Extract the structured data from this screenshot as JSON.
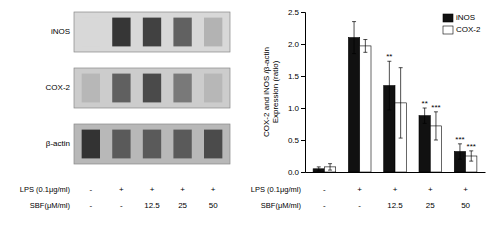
{
  "chart_data": [
    {
      "type": "blot",
      "series": [
        {
          "name": "iNOS",
          "color": "#d8d8d8",
          "values": [
            0.0,
            0.88,
            0.82,
            0.65,
            0.2
          ]
        },
        {
          "name": "COX-2",
          "color": "#cccccc",
          "values": [
            0.12,
            0.62,
            0.75,
            0.48,
            0.12
          ]
        },
        {
          "name": "β-actin",
          "color": "#b8b8b8",
          "values": [
            0.85,
            0.6,
            0.6,
            0.6,
            0.7
          ]
        }
      ],
      "category_rows": [
        {
          "label": "LPS (0.1μg/ml)",
          "categories": [
            "-",
            "+",
            "+",
            "+",
            "+"
          ]
        },
        {
          "label": "SBF(μM/ml)",
          "categories": [
            "-",
            "-",
            "12.5",
            "25",
            "50"
          ]
        }
      ]
    },
    {
      "type": "bar",
      "category_rows": [
        {
          "label": "LPS (0.1μg/ml)",
          "categories": [
            "-",
            "+",
            "+",
            "+",
            "+"
          ]
        },
        {
          "label": "SBF(μM/ml)",
          "categories": [
            "-",
            "-",
            "12.5",
            "25",
            "50"
          ]
        }
      ],
      "series": [
        {
          "name": "iNOS",
          "color": "#111111",
          "values": [
            0.05,
            2.1,
            1.35,
            0.88,
            0.32
          ],
          "errors": [
            0.03,
            0.25,
            0.38,
            0.12,
            0.12
          ]
        },
        {
          "name": "COX-2",
          "color": "#ffffff",
          "values": [
            0.08,
            1.97,
            1.08,
            0.72,
            0.25
          ],
          "errors": [
            0.05,
            0.1,
            0.55,
            0.22,
            0.08
          ]
        }
      ],
      "ylabel": "COX-2 and iNOS /β-actin\nExpression (ratio)",
      "ylim": [
        0,
        2.5
      ],
      "yticks": [
        {
          "value": 0,
          "label": "0.0"
        },
        0.5,
        {
          "value": 1.0,
          "label": "1.0"
        },
        1.5,
        {
          "value": 2.0,
          "label": "2.0"
        },
        2.5
      ],
      "legend": "upper right",
      "annotations": [
        {
          "text": "**",
          "series": 0,
          "index": 2
        },
        {
          "text": "**",
          "series": 0,
          "index": 3
        },
        {
          "text": "***",
          "series": 0,
          "index": 4
        },
        {
          "text": "***",
          "series": 1,
          "index": 3
        },
        {
          "text": "***",
          "series": 1,
          "index": 4
        }
      ]
    }
  ]
}
